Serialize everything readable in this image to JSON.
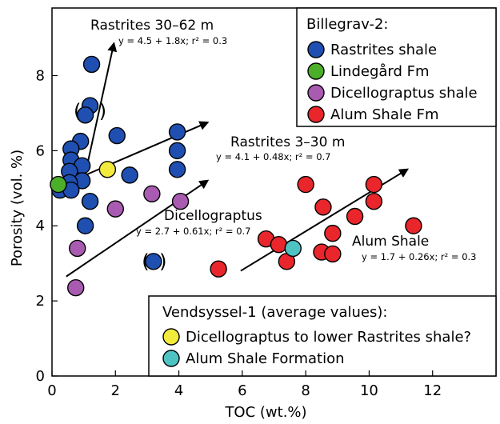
{
  "chart_data": {
    "type": "scatter",
    "xlabel": "TOC (wt.%)",
    "ylabel": "Porosity (vol. %)",
    "xlim": [
      0,
      14
    ],
    "ylim": [
      0,
      9.8
    ],
    "xticks": [
      0,
      2,
      4,
      6,
      8,
      10,
      12
    ],
    "yticks": [
      0,
      2,
      4,
      6,
      8
    ],
    "grid": false,
    "legends": [
      {
        "title": "Billegrav-2:",
        "placement": "top-right",
        "entries": [
          {
            "label": "Rastrites shale",
            "color": "#1f4fb0"
          },
          {
            "label": "Lindegård Fm",
            "color": "#4caf2a"
          },
          {
            "label": "Dicellograptus shale",
            "color": "#a85bb0"
          },
          {
            "label": "Alum Shale Fm",
            "color": "#e8262b"
          }
        ]
      },
      {
        "title": "Vendsyssel-1 (average  values):",
        "placement": "bottom-right",
        "entries": [
          {
            "label": "Dicellograptus to lower Rastrites shale?",
            "color": "#f2ea3c"
          },
          {
            "label": "Alum Shale Formation",
            "color": "#4fc3c3"
          }
        ]
      }
    ],
    "series": [
      {
        "name": "Rastrites shale",
        "color": "#1f4fb0",
        "points": [
          [
            1.25,
            8.3
          ],
          [
            1.2,
            7.2
          ],
          [
            1.05,
            6.95
          ],
          [
            0.9,
            6.25
          ],
          [
            0.6,
            6.05
          ],
          [
            0.6,
            5.75
          ],
          [
            0.95,
            5.6
          ],
          [
            0.55,
            5.45
          ],
          [
            0.95,
            5.2
          ],
          [
            0.55,
            5.15
          ],
          [
            0.25,
            4.95
          ],
          [
            0.6,
            4.95
          ],
          [
            1.2,
            4.65
          ],
          [
            1.05,
            4.0
          ],
          [
            2.05,
            6.4
          ],
          [
            2.45,
            5.35
          ],
          [
            3.95,
            6.5
          ],
          [
            3.95,
            6.0
          ],
          [
            3.95,
            5.5
          ],
          [
            3.2,
            3.05
          ]
        ]
      },
      {
        "name": "Lindegård Fm",
        "color": "#4caf2a",
        "points": [
          [
            0.2,
            5.1
          ]
        ]
      },
      {
        "name": "Dicellograptus shale",
        "color": "#a85bb0",
        "points": [
          [
            3.15,
            4.85
          ],
          [
            2.0,
            4.45
          ],
          [
            4.05,
            4.65
          ],
          [
            0.8,
            3.4
          ],
          [
            0.75,
            2.35
          ]
        ]
      },
      {
        "name": "Alum Shale Fm",
        "color": "#e8262b",
        "points": [
          [
            8.0,
            5.1
          ],
          [
            10.15,
            5.1
          ],
          [
            10.15,
            4.65
          ],
          [
            8.55,
            4.5
          ],
          [
            9.55,
            4.25
          ],
          [
            11.4,
            4.0
          ],
          [
            8.85,
            3.8
          ],
          [
            6.75,
            3.65
          ],
          [
            7.15,
            3.5
          ],
          [
            8.5,
            3.3
          ],
          [
            8.85,
            3.25
          ],
          [
            7.4,
            3.05
          ],
          [
            5.25,
            2.85
          ]
        ]
      },
      {
        "name": "Dicellograptus to lower Rastrites shale?",
        "color": "#f2ea3c",
        "points": [
          [
            1.75,
            5.5
          ]
        ]
      },
      {
        "name": "Alum Shale Formation",
        "color": "#4fc3c3",
        "points": [
          [
            7.6,
            3.4
          ]
        ]
      }
    ],
    "trendlines": [
      {
        "label": "Rastrites 30–62 m",
        "equation": "y = 4.5 + 1.8x; r² = 0.3",
        "from": [
          0.95,
          5.0
        ],
        "to": [
          1.95,
          8.85
        ]
      },
      {
        "label": "Rastrites 3–30 m",
        "equation": "y = 4.1 + 0.48x; r² = 0.7",
        "from": [
          0.5,
          5.15
        ],
        "to": [
          4.9,
          6.75
        ]
      },
      {
        "label": "Dicellograptus",
        "equation": "y = 2.7 + 0.61x; r² = 0.7",
        "from": [
          0.45,
          2.65
        ],
        "to": [
          4.9,
          5.2
        ]
      },
      {
        "label": "Alum Shale",
        "equation": "y = 1.7 + 0.26x; r² = 0.3",
        "from": [
          5.95,
          2.8
        ],
        "to": [
          11.2,
          5.5
        ]
      }
    ],
    "annotations": [
      {
        "text": "(",
        "x": 0.8,
        "y": 7.05
      },
      {
        "text": ")",
        "x": 1.6,
        "y": 7.05
      },
      {
        "text": "(",
        "x": 2.95,
        "y": 3.05
      },
      {
        "text": ")",
        "x": 3.5,
        "y": 3.05
      }
    ]
  }
}
